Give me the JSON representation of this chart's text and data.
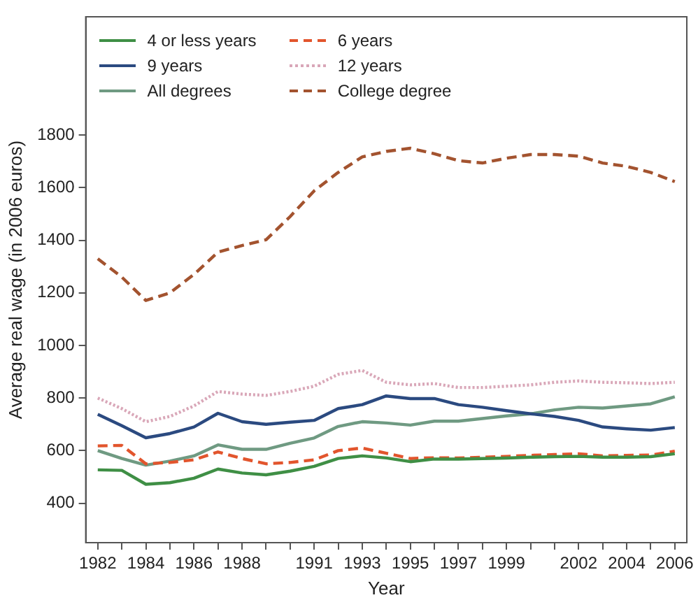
{
  "chart_data": {
    "type": "line",
    "xlabel": "Year",
    "ylabel": "Average real wage (in 2006 euros)",
    "x": [
      1982,
      1983,
      1984,
      1985,
      1986,
      1987,
      1988,
      1989,
      1990,
      1991,
      1992,
      1993,
      1994,
      1995,
      1996,
      1997,
      1998,
      1999,
      2000,
      2001,
      2002,
      2003,
      2004,
      2005,
      2006
    ],
    "xlim": [
      1981.5,
      2006.5
    ],
    "xticks": [
      1982,
      {
        "value": 1983,
        "label": null
      },
      1984,
      {
        "value": 1985,
        "label": null
      },
      1986,
      {
        "value": 1987,
        "label": null
      },
      1988,
      {
        "value": 1989,
        "label": null
      },
      {
        "value": 1990,
        "label": null
      },
      1991,
      {
        "value": 1992,
        "label": null
      },
      1993,
      {
        "value": 1994,
        "label": null
      },
      1995,
      {
        "value": 1996,
        "label": null
      },
      1997,
      {
        "value": 1998,
        "label": null
      },
      1999,
      {
        "value": 2000,
        "label": null
      },
      {
        "value": 2001,
        "label": null
      },
      2002,
      {
        "value": 2003,
        "label": null
      },
      2004,
      {
        "value": 2005,
        "label": null
      },
      2006
    ],
    "ylim": [
      250,
      2250
    ],
    "yticks": [
      400,
      600,
      800,
      1000,
      1200,
      1400,
      1600,
      1800
    ],
    "grid": false,
    "legend": "top left",
    "marker": "none",
    "series": [
      {
        "name": "4 or less years",
        "color": "#3f8f45",
        "line_style": "solid",
        "values": [
          527,
          525,
          472,
          478,
          495,
          530,
          515,
          508,
          522,
          540,
          570,
          580,
          572,
          558,
          568,
          568,
          570,
          572,
          575,
          577,
          578,
          575,
          575,
          577,
          588
        ]
      },
      {
        "name": "6 years",
        "color": "#e2552d",
        "line_style": "dashed",
        "values": [
          618,
          620,
          550,
          555,
          565,
          595,
          570,
          550,
          555,
          565,
          600,
          610,
          590,
          570,
          573,
          572,
          575,
          578,
          582,
          585,
          588,
          580,
          582,
          583,
          598
        ]
      },
      {
        "name": "9 years",
        "color": "#2b4a80",
        "line_style": "solid",
        "values": [
          738,
          695,
          649,
          665,
          690,
          742,
          710,
          700,
          708,
          715,
          760,
          775,
          808,
          798,
          798,
          775,
          765,
          752,
          740,
          730,
          715,
          690,
          683,
          678,
          688
        ]
      },
      {
        "name": "12 years",
        "color": "#d9a7b8",
        "line_style": "dotted",
        "values": [
          800,
          760,
          710,
          730,
          770,
          825,
          815,
          810,
          825,
          845,
          890,
          905,
          860,
          850,
          855,
          840,
          840,
          845,
          850,
          860,
          865,
          860,
          858,
          855,
          860
        ]
      },
      {
        "name": "All degrees",
        "color": "#6f9a82",
        "line_style": "solid",
        "values": [
          600,
          570,
          545,
          560,
          580,
          622,
          605,
          605,
          628,
          648,
          692,
          710,
          705,
          697,
          712,
          712,
          722,
          732,
          740,
          755,
          765,
          762,
          770,
          778,
          805
        ]
      },
      {
        "name": "College degree",
        "color": "#a3532f",
        "line_style": "dashed",
        "values": [
          1330,
          1260,
          1171,
          1200,
          1270,
          1355,
          1380,
          1402,
          1490,
          1588,
          1658,
          1717,
          1738,
          1750,
          1729,
          1703,
          1694,
          1712,
          1726,
          1726,
          1720,
          1694,
          1681,
          1658,
          1623
        ]
      }
    ]
  }
}
